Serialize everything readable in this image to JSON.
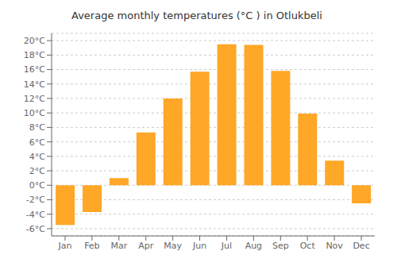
{
  "chart_data": {
    "type": "bar",
    "title": "Average monthly temperatures (°C ) in Otlukbeli",
    "categories": [
      "Jan",
      "Feb",
      "Mar",
      "Apr",
      "May",
      "Jun",
      "Jul",
      "Aug",
      "Sep",
      "Oct",
      "Nov",
      "Dec"
    ],
    "values": [
      -5.5,
      -3.7,
      1.0,
      7.3,
      12.0,
      15.7,
      19.5,
      19.4,
      15.8,
      9.9,
      3.4,
      -2.5
    ],
    "color": "#FFA726",
    "ylim": [
      -7,
      21
    ],
    "yticks": [
      {
        "value": -6,
        "label": "-6°C"
      },
      {
        "value": -4,
        "label": "-4°C"
      },
      {
        "value": -2,
        "label": "-2°C"
      },
      {
        "value": 0,
        "label": "0°C"
      },
      {
        "value": 2,
        "label": "2°C"
      },
      {
        "value": 4,
        "label": "4°C"
      },
      {
        "value": 6,
        "label": "6°C"
      },
      {
        "value": 8,
        "label": "8°C"
      },
      {
        "value": 10,
        "label": "10°C"
      },
      {
        "value": 12,
        "label": "12°C"
      },
      {
        "value": 14,
        "label": "14°C"
      },
      {
        "value": 16,
        "label": "16°C"
      },
      {
        "value": 18,
        "label": "18°C"
      },
      {
        "value": 20,
        "label": "20°C"
      }
    ],
    "grid": true
  }
}
